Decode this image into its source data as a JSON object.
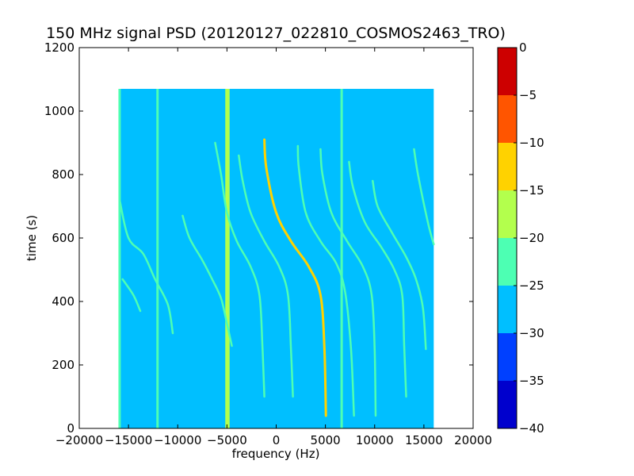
{
  "chart_data": {
    "type": "heatmap",
    "title": "150 MHz signal PSD (20120127_022810_COSMOS2463_TRO)",
    "xlabel": "frequency (Hz)",
    "ylabel": "time (s)",
    "xlim": [
      -20000,
      20000
    ],
    "ylim": [
      0,
      1200
    ],
    "x_ticks": [
      -20000,
      -15000,
      -10000,
      -5000,
      0,
      5000,
      10000,
      15000,
      20000
    ],
    "x_tick_labels": [
      "−20000",
      "−15000",
      "−10000",
      "−5000",
      "0",
      "5000",
      "10000",
      "15000",
      "20000"
    ],
    "y_ticks": [
      0,
      200,
      400,
      600,
      800,
      1000,
      1200
    ],
    "y_tick_labels": [
      "0",
      "200",
      "400",
      "600",
      "800",
      "1000",
      "1200"
    ],
    "data_extent": {
      "x": [
        -16000,
        16000
      ],
      "y": [
        0,
        1070
      ]
    },
    "background_level": -27.5,
    "colorbar": {
      "range": [
        -40,
        0
      ],
      "ticks": [
        0,
        -5,
        -10,
        -15,
        -20,
        -25,
        -30,
        -35,
        -40
      ],
      "tick_labels": [
        "0",
        "−5",
        "−10",
        "−15",
        "−20",
        "−25",
        "−30",
        "−35",
        "−40"
      ],
      "bands": [
        {
          "from": -40,
          "to": -35,
          "color": "#0000cd"
        },
        {
          "from": -35,
          "to": -30,
          "color": "#0040ff"
        },
        {
          "from": -30,
          "to": -25,
          "color": "#00bfff"
        },
        {
          "from": -25,
          "to": -20,
          "color": "#4dffb3"
        },
        {
          "from": -20,
          "to": -15,
          "color": "#b3ff4d"
        },
        {
          "from": -15,
          "to": -10,
          "color": "#ffd200"
        },
        {
          "from": -10,
          "to": -5,
          "color": "#ff5500"
        },
        {
          "from": -5,
          "to": 0,
          "color": "#cd0000"
        }
      ]
    },
    "vertical_lines": [
      {
        "freq": -15900,
        "t": [
          0,
          1070
        ],
        "level": -22
      },
      {
        "freq": -12050,
        "t": [
          0,
          1070
        ],
        "level": -22
      },
      {
        "freq": -5050,
        "t": [
          0,
          1070
        ],
        "level": -16
      },
      {
        "freq": -4850,
        "t": [
          0,
          1070
        ],
        "level": -18
      },
      {
        "freq": 6650,
        "t": [
          0,
          1070
        ],
        "level": -22
      }
    ],
    "doppler_traces": [
      {
        "points": [
          [
            -15600,
            470
          ],
          [
            -14500,
            420
          ],
          [
            -13800,
            370
          ]
        ],
        "level": -22
      },
      {
        "points": [
          [
            -15900,
            720
          ],
          [
            -15000,
            600
          ],
          [
            -13500,
            550
          ],
          [
            -12300,
            470
          ],
          [
            -11000,
            390
          ],
          [
            -10500,
            300
          ]
        ],
        "level": -22
      },
      {
        "points": [
          [
            -9500,
            670
          ],
          [
            -8800,
            600
          ],
          [
            -7500,
            530
          ],
          [
            -6500,
            470
          ],
          [
            -5600,
            410
          ],
          [
            -5000,
            330
          ],
          [
            -4500,
            260
          ]
        ],
        "level": -24
      },
      {
        "points": [
          [
            -6200,
            900
          ],
          [
            -5600,
            800
          ],
          [
            -5000,
            680
          ],
          [
            -4000,
            590
          ],
          [
            -2600,
            510
          ],
          [
            -1700,
            420
          ],
          [
            -1400,
            260
          ],
          [
            -1200,
            100
          ]
        ],
        "level": -22
      },
      {
        "points": [
          [
            -3800,
            860
          ],
          [
            -3400,
            780
          ],
          [
            -2600,
            680
          ],
          [
            -1200,
            590
          ],
          [
            300,
            510
          ],
          [
            1200,
            420
          ],
          [
            1500,
            250
          ],
          [
            1700,
            100
          ]
        ],
        "level": -22
      },
      {
        "points": [
          [
            -1200,
            910
          ],
          [
            -1000,
            820
          ],
          [
            0,
            680
          ],
          [
            1500,
            590
          ],
          [
            3300,
            510
          ],
          [
            4500,
            420
          ],
          [
            4900,
            250
          ],
          [
            5050,
            40
          ]
        ],
        "level": -12
      },
      {
        "points": [
          [
            2200,
            890
          ],
          [
            2300,
            820
          ],
          [
            3000,
            680
          ],
          [
            4500,
            590
          ],
          [
            6100,
            520
          ],
          [
            7000,
            430
          ],
          [
            7600,
            250
          ],
          [
            7900,
            40
          ]
        ],
        "level": -22
      },
      {
        "points": [
          [
            4500,
            880
          ],
          [
            4700,
            800
          ],
          [
            5600,
            680
          ],
          [
            7200,
            590
          ],
          [
            8800,
            510
          ],
          [
            9700,
            420
          ],
          [
            10000,
            250
          ],
          [
            10100,
            40
          ]
        ],
        "level": -22
      },
      {
        "points": [
          [
            7400,
            840
          ],
          [
            7800,
            760
          ],
          [
            9000,
            650
          ],
          [
            10700,
            570
          ],
          [
            12000,
            500
          ],
          [
            12800,
            420
          ],
          [
            13000,
            260
          ],
          [
            13200,
            100
          ]
        ],
        "level": -24
      },
      {
        "points": [
          [
            9800,
            780
          ],
          [
            10300,
            700
          ],
          [
            11700,
            620
          ],
          [
            13200,
            540
          ],
          [
            14200,
            470
          ],
          [
            14900,
            380
          ],
          [
            15200,
            250
          ]
        ],
        "level": -24
      },
      {
        "points": [
          [
            14000,
            880
          ],
          [
            14400,
            800
          ],
          [
            15400,
            650
          ],
          [
            16000,
            580
          ]
        ],
        "level": -22
      }
    ]
  }
}
